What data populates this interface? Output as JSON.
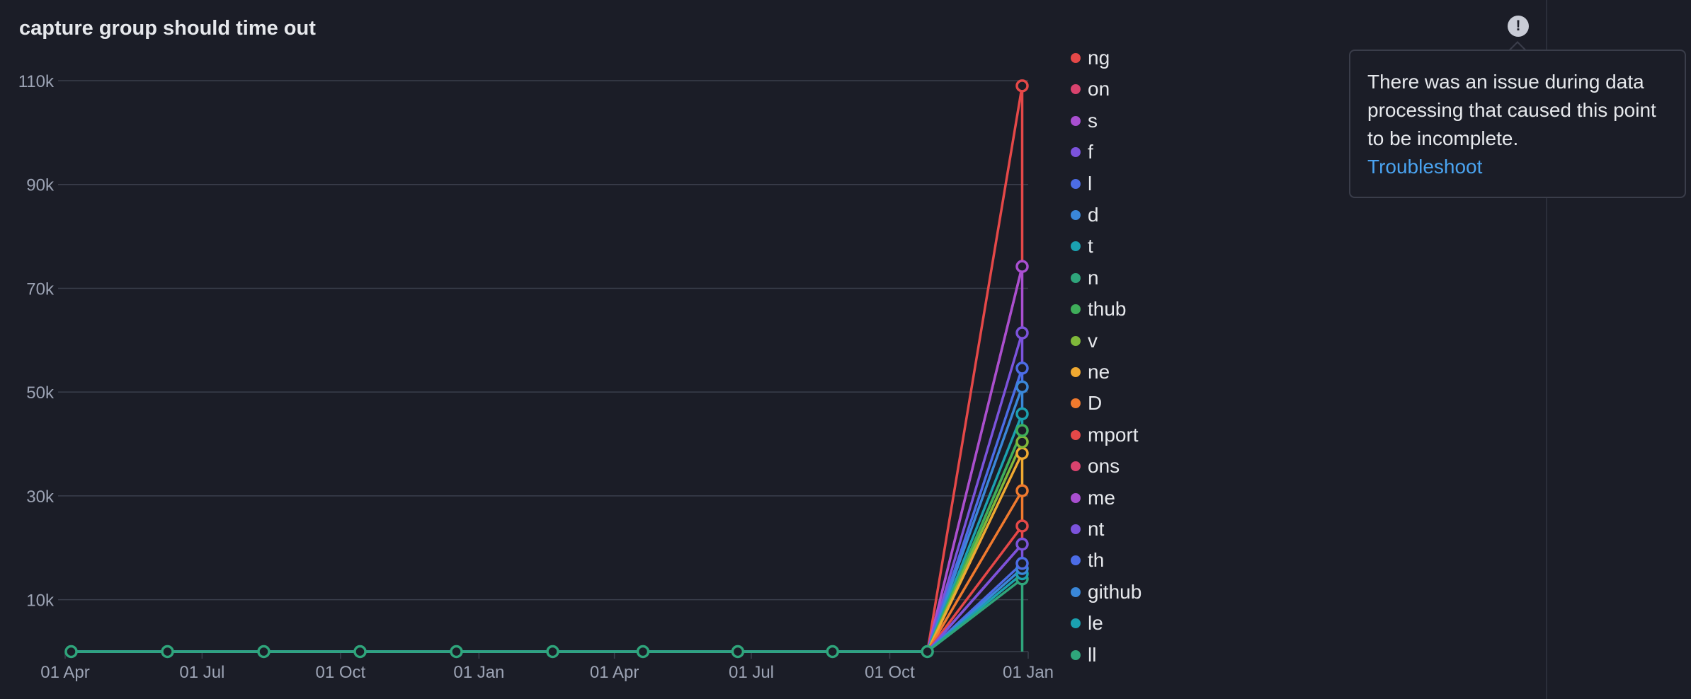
{
  "title": "capture group should time out",
  "tooltip": {
    "icon": "!",
    "message": "There was an issue during data processing that caused this point to be incomplete.",
    "link": "Troubleshoot"
  },
  "chart_data": {
    "type": "line",
    "title": "capture group should time out",
    "xlabel": "",
    "ylabel": "",
    "ylim": [
      0,
      110000
    ],
    "y_ticks": [
      10000,
      30000,
      50000,
      70000,
      90000,
      110000
    ],
    "y_tick_labels": [
      "10k",
      "30k",
      "50k",
      "70k",
      "90k",
      "110k"
    ],
    "x_tick_labels": [
      "01 Apr",
      "01 Jul",
      "01 Oct",
      "01 Jan",
      "01 Apr",
      "01 Jul",
      "01 Oct",
      "01 Jan"
    ],
    "grid": true,
    "legend_position": "right",
    "x": [
      "2021-04-05",
      "2021-06-08",
      "2021-08-11",
      "2021-10-14",
      "2021-12-17",
      "2022-02-19",
      "2022-04-20",
      "2022-06-22",
      "2022-08-24",
      "2022-10-26",
      "2022-12-28"
    ],
    "stacked": true,
    "series": [
      {
        "name": "ll",
        "color": "#2fa57b",
        "values": [
          0,
          0,
          0,
          0,
          0,
          0,
          0,
          0,
          0,
          0,
          14000
        ]
      },
      {
        "name": "le",
        "color": "#1ba1b0",
        "values": [
          0,
          0,
          0,
          0,
          0,
          0,
          0,
          0,
          0,
          0,
          1000
        ]
      },
      {
        "name": "github",
        "color": "#3a87d8",
        "values": [
          0,
          0,
          0,
          0,
          0,
          0,
          0,
          0,
          0,
          0,
          1000
        ]
      },
      {
        "name": "th",
        "color": "#4c6ce6",
        "values": [
          0,
          0,
          0,
          0,
          0,
          0,
          0,
          0,
          0,
          0,
          1000
        ]
      },
      {
        "name": "nt",
        "color": "#7c53dc",
        "values": [
          0,
          0,
          0,
          0,
          0,
          0,
          0,
          0,
          0,
          0,
          3700
        ]
      },
      {
        "name": "me",
        "color": "#a94fd0",
        "values": [
          0,
          0,
          0,
          0,
          0,
          0,
          0,
          0,
          0,
          0,
          0
        ]
      },
      {
        "name": "ons",
        "color": "#d9436e",
        "values": [
          0,
          0,
          0,
          0,
          0,
          0,
          0,
          0,
          0,
          0,
          0
        ]
      },
      {
        "name": "mport",
        "color": "#e54848",
        "values": [
          0,
          0,
          0,
          0,
          0,
          0,
          0,
          0,
          0,
          0,
          3500
        ]
      },
      {
        "name": "D",
        "color": "#f07a2e",
        "values": [
          0,
          0,
          0,
          0,
          0,
          0,
          0,
          0,
          0,
          0,
          6800
        ]
      },
      {
        "name": "ne",
        "color": "#f0a931",
        "values": [
          0,
          0,
          0,
          0,
          0,
          0,
          0,
          0,
          0,
          0,
          7200
        ]
      },
      {
        "name": "v",
        "color": "#7fb83a",
        "values": [
          0,
          0,
          0,
          0,
          0,
          0,
          0,
          0,
          0,
          0,
          2200
        ]
      },
      {
        "name": "thub",
        "color": "#3fae5a",
        "values": [
          0,
          0,
          0,
          0,
          0,
          0,
          0,
          0,
          0,
          0,
          2200
        ]
      },
      {
        "name": "n",
        "color": "#2fa57b",
        "values": [
          0,
          0,
          0,
          0,
          0,
          0,
          0,
          0,
          0,
          0,
          0
        ]
      },
      {
        "name": "t",
        "color": "#1ba1b0",
        "values": [
          0,
          0,
          0,
          0,
          0,
          0,
          0,
          0,
          0,
          0,
          3200
        ]
      },
      {
        "name": "d",
        "color": "#3a87d8",
        "values": [
          0,
          0,
          0,
          0,
          0,
          0,
          0,
          0,
          0,
          0,
          5200
        ]
      },
      {
        "name": "l",
        "color": "#4c6ce6",
        "values": [
          0,
          0,
          0,
          0,
          0,
          0,
          0,
          0,
          0,
          0,
          3600
        ]
      },
      {
        "name": "f",
        "color": "#7c53dc",
        "values": [
          0,
          0,
          0,
          0,
          0,
          0,
          0,
          0,
          0,
          0,
          6800
        ]
      },
      {
        "name": "s",
        "color": "#a94fd0",
        "values": [
          0,
          0,
          0,
          0,
          0,
          0,
          0,
          0,
          0,
          0,
          12800
        ]
      },
      {
        "name": "on",
        "color": "#d9436e",
        "values": [
          0,
          0,
          0,
          0,
          0,
          0,
          0,
          0,
          0,
          0,
          0
        ]
      },
      {
        "name": "ng",
        "color": "#e54848",
        "values": [
          0,
          0,
          0,
          0,
          0,
          0,
          0,
          0,
          0,
          0,
          34800
        ]
      }
    ]
  }
}
